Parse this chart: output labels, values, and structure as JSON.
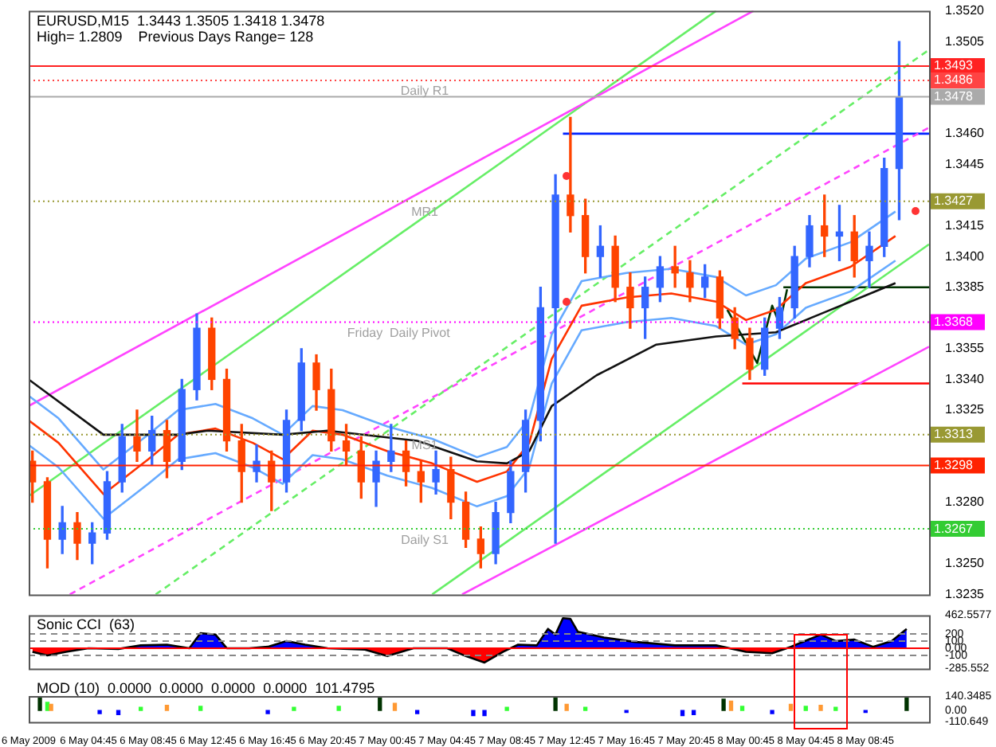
{
  "chart_data": [
    {
      "type": "candlestick",
      "title": "EURUSD,M15  1.3443 1.3505 1.3418 1.3478",
      "subtitle": "High= 1.2809    Previous Days Range= 128",
      "x": [
        "2009-05-06T01:00",
        "2009-05-06T02:00",
        "2009-05-06T03:00",
        "2009-05-06T04:00",
        "2009-05-06T05:00",
        "2009-05-06T06:00",
        "2009-05-06T07:00",
        "2009-05-06T08:00",
        "2009-05-06T09:00",
        "2009-05-06T10:00",
        "2009-05-06T11:00",
        "2009-05-06T12:00",
        "2009-05-06T13:00",
        "2009-05-06T14:00",
        "2009-05-06T15:00",
        "2009-05-06T16:00",
        "2009-05-06T17:00",
        "2009-05-06T18:00",
        "2009-05-06T19:00",
        "2009-05-06T20:00",
        "2009-05-06T21:00",
        "2009-05-06T22:00",
        "2009-05-06T23:00",
        "2009-05-07T00:00",
        "2009-05-07T01:00",
        "2009-05-07T02:00",
        "2009-05-07T03:00",
        "2009-05-07T04:00",
        "2009-05-07T05:00",
        "2009-05-07T06:00",
        "2009-05-07T07:00",
        "2009-05-07T08:00",
        "2009-05-07T09:00",
        "2009-05-07T10:00",
        "2009-05-07T11:00",
        "2009-05-07T12:00",
        "2009-05-07T13:00",
        "2009-05-07T14:00",
        "2009-05-07T15:00",
        "2009-05-07T16:00",
        "2009-05-07T17:00",
        "2009-05-07T18:00",
        "2009-05-07T19:00",
        "2009-05-07T20:00",
        "2009-05-07T21:00",
        "2009-05-07T22:00",
        "2009-05-07T23:00",
        "2009-05-08T00:00",
        "2009-05-08T01:00",
        "2009-05-08T02:00",
        "2009-05-08T03:00",
        "2009-05-08T04:00",
        "2009-05-08T05:00",
        "2009-05-08T06:00",
        "2009-05-08T07:00",
        "2009-05-08T08:00",
        "2009-05-08T09:00",
        "2009-05-08T10:00",
        "2009-05-08T11:00"
      ],
      "ohlc": [
        [
          1.33,
          1.3305,
          1.328,
          1.329
        ],
        [
          1.329,
          1.3292,
          1.3248,
          1.3262
        ],
        [
          1.3262,
          1.3278,
          1.3255,
          1.327
        ],
        [
          1.327,
          1.3275,
          1.3252,
          1.326
        ],
        [
          1.326,
          1.327,
          1.325,
          1.3265
        ],
        [
          1.3265,
          1.3295,
          1.3262,
          1.329
        ],
        [
          1.329,
          1.3318,
          1.3285,
          1.3312
        ],
        [
          1.3312,
          1.3325,
          1.33,
          1.3305
        ],
        [
          1.3305,
          1.3322,
          1.3298,
          1.3315
        ],
        [
          1.3315,
          1.332,
          1.3292,
          1.33
        ],
        [
          1.33,
          1.334,
          1.3296,
          1.3335
        ],
        [
          1.3335,
          1.3372,
          1.333,
          1.3365
        ],
        [
          1.3365,
          1.337,
          1.3335,
          1.334
        ],
        [
          1.334,
          1.3345,
          1.3305,
          1.331
        ],
        [
          1.331,
          1.3318,
          1.328,
          1.3295
        ],
        [
          1.3295,
          1.3308,
          1.329,
          1.33
        ],
        [
          1.33,
          1.3305,
          1.3276,
          1.329
        ],
        [
          1.329,
          1.3325,
          1.3285,
          1.332
        ],
        [
          1.332,
          1.3355,
          1.3315,
          1.3348
        ],
        [
          1.3348,
          1.3352,
          1.3325,
          1.3335
        ],
        [
          1.3335,
          1.3345,
          1.3305,
          1.331
        ],
        [
          1.331,
          1.3318,
          1.3298,
          1.3305
        ],
        [
          1.3305,
          1.3312,
          1.3282,
          1.329
        ],
        [
          1.329,
          1.3305,
          1.3278,
          1.33
        ],
        [
          1.33,
          1.3318,
          1.3295,
          1.3305
        ],
        [
          1.3305,
          1.331,
          1.3288,
          1.3295
        ],
        [
          1.3295,
          1.33,
          1.328,
          1.329
        ],
        [
          1.329,
          1.3305,
          1.3284,
          1.3296
        ],
        [
          1.3296,
          1.3302,
          1.3272,
          1.328
        ],
        [
          1.328,
          1.3285,
          1.3258,
          1.3262
        ],
        [
          1.3262,
          1.3268,
          1.3248,
          1.3255
        ],
        [
          1.3255,
          1.328,
          1.325,
          1.3275
        ],
        [
          1.3275,
          1.33,
          1.327,
          1.3295
        ],
        [
          1.3295,
          1.3325,
          1.3285,
          1.332
        ],
        [
          1.332,
          1.3385,
          1.331,
          1.3375
        ],
        [
          1.3375,
          1.344,
          1.326,
          1.343
        ],
        [
          1.343,
          1.3468,
          1.3412,
          1.342
        ],
        [
          1.342,
          1.3428,
          1.3392,
          1.34
        ],
        [
          1.34,
          1.3415,
          1.339,
          1.3405
        ],
        [
          1.3405,
          1.341,
          1.3378,
          1.3385
        ],
        [
          1.3385,
          1.3392,
          1.3365,
          1.3375
        ],
        [
          1.3375,
          1.339,
          1.336,
          1.3385
        ],
        [
          1.3385,
          1.34,
          1.3378,
          1.3395
        ],
        [
          1.3395,
          1.3405,
          1.3385,
          1.3392
        ],
        [
          1.3392,
          1.3398,
          1.3378,
          1.3385
        ],
        [
          1.3385,
          1.3396,
          1.338,
          1.339
        ],
        [
          1.339,
          1.3393,
          1.3365,
          1.337
        ],
        [
          1.337,
          1.3375,
          1.3355,
          1.336
        ],
        [
          1.336,
          1.3365,
          1.334,
          1.3345
        ],
        [
          1.3345,
          1.337,
          1.3342,
          1.3365
        ],
        [
          1.3365,
          1.338,
          1.336,
          1.3375
        ],
        [
          1.3375,
          1.3405,
          1.337,
          1.34
        ],
        [
          1.34,
          1.342,
          1.3395,
          1.3415
        ],
        [
          1.3415,
          1.343,
          1.34,
          1.341
        ],
        [
          1.341,
          1.3425,
          1.3398,
          1.3412
        ],
        [
          1.3412,
          1.342,
          1.339,
          1.3398
        ],
        [
          1.3398,
          1.3412,
          1.3385,
          1.3405
        ],
        [
          1.3405,
          1.3448,
          1.34,
          1.3443
        ],
        [
          1.3443,
          1.3505,
          1.3418,
          1.3478
        ]
      ],
      "colors": [
        "#ff4400",
        "#ff4400",
        "#3366ff",
        "#ff4400",
        "#3366ff",
        "#3366ff",
        "#3366ff",
        "#ff4400",
        "#3366ff",
        "#ff4400",
        "#3366ff",
        "#3366ff",
        "#ff4400",
        "#ff4400",
        "#ff4400",
        "#3366ff",
        "#ff4400",
        "#3366ff",
        "#3366ff",
        "#ff4400",
        "#ff4400",
        "#ff4400",
        "#ff4400",
        "#3366ff",
        "#3366ff",
        "#ff4400",
        "#ff4400",
        "#3366ff",
        "#ff4400",
        "#ff4400",
        "#ff4400",
        "#3366ff",
        "#3366ff",
        "#3366ff",
        "#3366ff",
        "#3366ff",
        "#ff4400",
        "#ff4400",
        "#3366ff",
        "#ff4400",
        "#ff4400",
        "#3366ff",
        "#3366ff",
        "#ff4400",
        "#ff4400",
        "#3366ff",
        "#ff4400",
        "#ff4400",
        "#ff4400",
        "#3366ff",
        "#3366ff",
        "#3366ff",
        "#3366ff",
        "#ff4400",
        "#3366ff",
        "#ff4400",
        "#3366ff",
        "#3366ff",
        "#3366ff"
      ],
      "series": [
        {
          "type": "line",
          "color": "#111111",
          "x": [
            "2009-05-06T00:45",
            "2009-05-06T05:45",
            "2009-05-06T10:45",
            "2009-05-06T12:45",
            "2009-05-06T17:45",
            "2009-05-06T20:45",
            "2009-05-07T02:45",
            "2009-05-07T06:45",
            "2009-05-07T08:45",
            "2009-05-07T10:15",
            "2009-05-07T11:45",
            "2009-05-07T14:45",
            "2009-05-07T18:45",
            "2009-05-07T22:45",
            "2009-05-08T02:45",
            "2009-05-08T05:45",
            "2009-05-08T08:45",
            "2009-05-08T10:45"
          ],
          "values": [
            1.334,
            1.3313,
            1.3313,
            1.3315,
            1.3313,
            1.3315,
            1.331,
            1.33,
            1.3299,
            1.3305,
            1.3327,
            1.3342,
            1.3357,
            1.3361,
            1.3363,
            1.3372,
            1.3381,
            1.3387
          ]
        },
        {
          "type": "line",
          "color": "#ff3300",
          "x": [
            "2009-05-06T00:45",
            "2009-05-06T02:45",
            "2009-05-06T05:45",
            "2009-05-06T08:45",
            "2009-05-06T10:45",
            "2009-05-06T13:15",
            "2009-05-06T15:45",
            "2009-05-06T17:45",
            "2009-05-06T19:45",
            "2009-05-06T21:45",
            "2009-05-07T00:45",
            "2009-05-07T03:45",
            "2009-05-07T06:45",
            "2009-05-07T08:45",
            "2009-05-07T10:15",
            "2009-05-07T11:45",
            "2009-05-07T13:45",
            "2009-05-07T16:45",
            "2009-05-07T19:45",
            "2009-05-07T22:45",
            "2009-05-08T00:45",
            "2009-05-08T02:45",
            "2009-05-08T04:45",
            "2009-05-08T07:45",
            "2009-05-08T10:45"
          ],
          "values": [
            1.332,
            1.3309,
            1.3284,
            1.3301,
            1.3313,
            1.3316,
            1.3309,
            1.3301,
            1.3315,
            1.3313,
            1.3305,
            1.3299,
            1.329,
            1.3295,
            1.3309,
            1.335,
            1.3376,
            1.338,
            1.3382,
            1.3378,
            1.3369,
            1.3374,
            1.3387,
            1.3395,
            1.341
          ]
        },
        {
          "type": "line",
          "color": "#66aaff",
          "x": [
            "2009-05-06T00:45",
            "2009-05-06T02:45",
            "2009-05-06T05:45",
            "2009-05-06T08:45",
            "2009-05-06T10:45",
            "2009-05-06T13:15",
            "2009-05-06T15:45",
            "2009-05-06T17:45",
            "2009-05-06T19:45",
            "2009-05-06T21:45",
            "2009-05-07T00:45",
            "2009-05-07T03:45",
            "2009-05-07T06:45",
            "2009-05-07T08:45",
            "2009-05-07T10:15",
            "2009-05-07T11:45",
            "2009-05-07T13:45",
            "2009-05-07T16:45",
            "2009-05-07T19:45",
            "2009-05-07T22:45",
            "2009-05-08T00:45",
            "2009-05-08T02:45",
            "2009-05-08T04:45",
            "2009-05-08T07:45",
            "2009-05-08T10:45"
          ],
          "values": [
            1.3332,
            1.3321,
            1.3296,
            1.3313,
            1.3325,
            1.3328,
            1.3321,
            1.3313,
            1.3327,
            1.3325,
            1.3317,
            1.3311,
            1.3302,
            1.3307,
            1.3321,
            1.3362,
            1.3388,
            1.3392,
            1.3394,
            1.339,
            1.3381,
            1.3386,
            1.3399,
            1.3407,
            1.3422
          ]
        },
        {
          "type": "line",
          "color": "#66aaff",
          "x": [
            "2009-05-06T00:45",
            "2009-05-06T02:45",
            "2009-05-06T05:45",
            "2009-05-06T08:45",
            "2009-05-06T10:45",
            "2009-05-06T13:15",
            "2009-05-06T15:45",
            "2009-05-06T17:45",
            "2009-05-06T19:45",
            "2009-05-06T21:45",
            "2009-05-07T00:45",
            "2009-05-07T03:45",
            "2009-05-07T06:45",
            "2009-05-07T08:45",
            "2009-05-07T10:15",
            "2009-05-07T11:45",
            "2009-05-07T13:45",
            "2009-05-07T16:45",
            "2009-05-07T19:45",
            "2009-05-07T22:45",
            "2009-05-08T00:45",
            "2009-05-08T02:45",
            "2009-05-08T04:45",
            "2009-05-08T07:45",
            "2009-05-08T10:45"
          ],
          "values": [
            1.3308,
            1.3297,
            1.3272,
            1.3289,
            1.3301,
            1.3304,
            1.3297,
            1.3289,
            1.3303,
            1.3301,
            1.3293,
            1.3287,
            1.3278,
            1.3283,
            1.3297,
            1.3338,
            1.3364,
            1.3368,
            1.337,
            1.3366,
            1.3357,
            1.3362,
            1.3375,
            1.3383,
            1.3398
          ]
        },
        {
          "type": "line",
          "color": "#ff44ff",
          "x": [
            "2009-05-06T00:45",
            "2009-05-08T01:15"
          ],
          "values": [
            1.3327,
            1.352
          ]
        },
        {
          "type": "line",
          "color": "#66ee66",
          "x": [
            "2009-05-06T00:45",
            "2009-05-07T22:45"
          ],
          "values": [
            1.3283,
            1.352
          ]
        },
        {
          "type": "line",
          "color": "#ff44ff",
          "x": [
            "2009-05-07T05:45",
            "2009-05-08T13:00"
          ],
          "values": [
            1.3235,
            1.3356
          ]
        },
        {
          "type": "line",
          "color": "#66ee66",
          "x": [
            "2009-05-07T03:45",
            "2009-05-08T13:00"
          ],
          "values": [
            1.3235,
            1.3406
          ]
        },
        {
          "type": "line",
          "color": "#66ee66",
          "line_style": "dashed",
          "x": [
            "2009-05-06T09:15",
            "2009-05-08T13:00"
          ],
          "values": [
            1.3235,
            1.3501
          ]
        },
        {
          "type": "line",
          "color": "#ff44ff",
          "line_style": "dashed",
          "x": [
            "2009-05-06T03:30",
            "2009-05-08T13:00"
          ],
          "values": [
            1.3235,
            1.3463
          ]
        },
        {
          "type": "line",
          "color": "#0022ff",
          "x": [
            "2009-05-07T12:30",
            "2009-05-08T13:00"
          ],
          "values": [
            1.346,
            1.346
          ]
        },
        {
          "type": "line",
          "color": "#003300",
          "x": [
            "2009-05-08T03:15",
            "2009-05-08T13:00"
          ],
          "values": [
            1.3385,
            1.3385
          ]
        },
        {
          "type": "line",
          "color": "#ff0000",
          "x": [
            "2009-05-08T00:30",
            "2009-05-08T13:00"
          ],
          "values": [
            1.3338,
            1.3338
          ]
        },
        {
          "type": "line",
          "color": "#003300",
          "x": [
            "2009-05-07T23:30",
            "2009-05-08T01:30",
            "2009-05-08T02:30",
            "2009-05-08T03:00",
            "2009-05-08T03:30"
          ],
          "values": [
            1.3374,
            1.3348,
            1.3376,
            1.3367,
            1.3384
          ]
        }
      ],
      "ref_lines": [
        {
          "axis": "y",
          "value": 1.3493,
          "label": "1.3493",
          "color": "#ff2222"
        },
        {
          "axis": "y",
          "value": 1.3486,
          "label": "1.3486",
          "color": "#ff4444",
          "line_style": "dotted"
        },
        {
          "axis": "y",
          "value": 1.3478,
          "label": "1.3478",
          "color": "#aaaaaa"
        },
        {
          "axis": "y",
          "value": 1.3427,
          "label": "1.3427",
          "color": "#999933",
          "line_style": "dotted"
        },
        {
          "axis": "y",
          "value": 1.3368,
          "label": "1.3368",
          "color": "#ff00ff",
          "line_style": "dotted"
        },
        {
          "axis": "y",
          "value": 1.3313,
          "label": "1.3313",
          "color": "#999933",
          "line_style": "dotted"
        },
        {
          "axis": "y",
          "value": 1.3298,
          "label": "1.3298",
          "color": "#ff2200"
        },
        {
          "axis": "y",
          "value": 1.3267,
          "label": "1.3267",
          "color": "#33cc33",
          "line_style": "dotted"
        }
      ],
      "annotations": [
        {
          "text": "Daily R1",
          "x": "2009-05-07T03:15",
          "y": 1.3486
        },
        {
          "text": "MR1",
          "x": "2009-05-07T03:15",
          "y": 1.3427
        },
        {
          "text": "Friday  Daily Pivot",
          "x": "2009-05-07T01:30",
          "y": 1.3368
        },
        {
          "text": "MS1",
          "x": "2009-05-07T03:15",
          "y": 1.3313
        },
        {
          "text": "Daily S1",
          "x": "2009-05-07T03:15",
          "y": 1.3267
        }
      ],
      "xlim": [
        "2009-05-06T00:45",
        "2009-05-08T13:00"
      ],
      "ylim": [
        1.3235,
        1.352
      ],
      "yticks": [
        1.3235,
        {
          "value": 1.325,
          "label": "1.3250"
        },
        {
          "value": 1.328,
          "label": "1.3280"
        },
        1.3325,
        {
          "value": 1.334,
          "label": "1.3340"
        },
        1.3355,
        1.3385,
        {
          "value": 1.34,
          "label": "1.3400"
        },
        1.3415,
        1.3445,
        {
          "value": 1.346,
          "label": "1.3460"
        },
        1.3505,
        {
          "value": 1.352,
          "label": "1.3520"
        }
      ],
      "tick_labels": "y"
    },
    {
      "type": "area",
      "title": "Sonic CCI  (63)",
      "series": [
        {
          "color": "#0000ff",
          "x": [
            "2009-05-06T01:00",
            "2009-05-06T02:00",
            "2009-05-06T03:15",
            "2009-05-06T04:45",
            "2009-05-06T06:45",
            "2009-05-06T08:15",
            "2009-05-06T10:00",
            "2009-05-06T11:30",
            "2009-05-06T12:15",
            "2009-05-06T13:15",
            "2009-05-06T14:00",
            "2009-05-06T15:30",
            "2009-05-06T16:45",
            "2009-05-06T18:00",
            "2009-05-06T19:15",
            "2009-05-06T20:45",
            "2009-05-06T23:15",
            "2009-05-07T00:45",
            "2009-05-07T02:30",
            "2009-05-07T04:45",
            "2009-05-07T06:00",
            "2009-05-07T07:15",
            "2009-05-07T08:30",
            "2009-05-07T09:30",
            "2009-05-07T10:45",
            "2009-05-07T11:30",
            "2009-05-07T12:00",
            "2009-05-07T12:30",
            "2009-05-07T13:00",
            "2009-05-07T13:30",
            "2009-05-07T15:15",
            "2009-05-07T17:15",
            "2009-05-07T20:00",
            "2009-05-07T22:45",
            "2009-05-08T00:45",
            "2009-05-08T02:30",
            "2009-05-08T03:45",
            "2009-05-08T05:45",
            "2009-05-08T06:45",
            "2009-05-08T08:00",
            "2009-05-08T09:15",
            "2009-05-08T10:30",
            "2009-05-08T11:30"
          ],
          "values": [
            -50,
            -100,
            -50,
            0,
            -10,
            40,
            50,
            0,
            210,
            190,
            0,
            0,
            20,
            100,
            50,
            0,
            -20,
            -110,
            0,
            0,
            -110,
            -200,
            -50,
            50,
            40,
            270,
            190,
            420,
            410,
            230,
            150,
            90,
            40,
            40,
            -50,
            -70,
            20,
            190,
            100,
            120,
            20,
            100,
            270
          ]
        }
      ],
      "ref_lines": [
        {
          "axis": "y",
          "value": 200,
          "color": "#888888",
          "line_style": "dashed"
        },
        {
          "axis": "y",
          "value": 100,
          "color": "#888888",
          "line_style": "dashed"
        },
        {
          "axis": "y",
          "value": 0,
          "color": "#ff0000"
        },
        {
          "axis": "y",
          "value": -100,
          "color": "#888888",
          "line_style": "dashed"
        }
      ],
      "xlim": [
        "2009-05-06T00:45",
        "2009-05-08T13:00"
      ],
      "ylim": [
        -285.552,
        462.5577
      ],
      "yticks": [
        {
          "value": 462.5577,
          "label": "462.5577"
        },
        200,
        100,
        {
          "value": 0,
          "label": "0.00"
        },
        -100,
        {
          "value": -285.552,
          "label": "-285.552"
        }
      ],
      "tick_labels": "y"
    },
    {
      "type": "bar",
      "title": "MOD (10)  0.0000  0.0000  0.0000  0.0000  101.4795",
      "x": [
        "2009-05-06T01:30",
        "2009-05-06T02:00",
        "2009-05-06T02:15",
        "2009-05-06T05:30",
        "2009-05-06T06:45",
        "2009-05-06T08:15",
        "2009-05-06T10:00",
        "2009-05-06T12:15",
        "2009-05-06T16:45",
        "2009-05-06T18:30",
        "2009-05-06T21:30",
        "2009-05-07T00:15",
        "2009-05-07T01:15",
        "2009-05-07T02:45",
        "2009-05-07T06:30",
        "2009-05-07T07:15",
        "2009-05-07T08:45",
        "2009-05-07T12:00",
        "2009-05-07T12:45",
        "2009-05-07T14:00",
        "2009-05-07T16:45",
        "2009-05-07T20:30",
        "2009-05-07T21:15",
        "2009-05-07T23:15",
        "2009-05-07T23:45",
        "2009-05-08T00:30",
        "2009-05-08T02:30",
        "2009-05-08T03:45",
        "2009-05-08T04:45",
        "2009-05-08T05:45",
        "2009-05-08T06:45",
        "2009-05-08T08:45",
        "2009-05-08T11:30"
      ],
      "values": [
        130,
        80,
        60,
        -30,
        -40,
        30,
        50,
        40,
        -30,
        30,
        40,
        130,
        70,
        -30,
        -50,
        -50,
        30,
        120,
        60,
        30,
        -20,
        -50,
        -40,
        110,
        90,
        40,
        -30,
        60,
        40,
        50,
        30,
        -20,
        130
      ],
      "colors": [
        "#003300",
        "#33ff33",
        "#ff9933",
        "#0000ff",
        "#0000ff",
        "#33ff33",
        "#ff9933",
        "#33ff33",
        "#0000ff",
        "#33ff33",
        "#33ff33",
        "#003300",
        "#ff9933",
        "#0000ff",
        "#0000ff",
        "#0000ff",
        "#33ff33",
        "#003300",
        "#ff9933",
        "#33ff33",
        "#0000ff",
        "#0000ff",
        "#0000ff",
        "#003300",
        "#ff9933",
        "#33ff33",
        "#0000ff",
        "#ff9933",
        "#33ff33",
        "#ff9933",
        "#33ff33",
        "#0000ff",
        "#003300"
      ],
      "xlim": [
        "2009-05-06T00:45",
        "2009-05-08T13:00"
      ],
      "ylim": [
        -110.649,
        140.3485
      ],
      "yticks": [
        {
          "value": 140.3485,
          "label": "140.3485"
        },
        {
          "value": 0,
          "label": "0.00"
        },
        {
          "value": -110.649,
          "label": "-110.649"
        }
      ],
      "xticks": [
        {
          "value": "2009-05-06T00:45",
          "label": "6 May 2009"
        },
        {
          "value": "2009-05-06T04:45",
          "label": "6 May 04:45"
        },
        {
          "value": "2009-05-06T08:45",
          "label": "6 May 08:45"
        },
        {
          "value": "2009-05-06T12:45",
          "label": "6 May 12:45"
        },
        {
          "value": "2009-05-06T16:45",
          "label": "6 May 16:45"
        },
        {
          "value": "2009-05-06T20:45",
          "label": "6 May 20:45"
        },
        {
          "value": "2009-05-07T00:45",
          "label": "7 May 00:45"
        },
        {
          "value": "2009-05-07T04:45",
          "label": "7 May 04:45"
        },
        {
          "value": "2009-05-07T08:45",
          "label": "7 May 08:45"
        },
        {
          "value": "2009-05-07T12:45",
          "label": "7 May 12:45"
        },
        {
          "value": "2009-05-07T16:45",
          "label": "7 May 16:45"
        },
        {
          "value": "2009-05-07T20:45",
          "label": "7 May 20:45"
        },
        {
          "value": "2009-05-08T00:45",
          "label": "8 May 00:45"
        },
        {
          "value": "2009-05-08T04:45",
          "label": "8 May 04:45"
        },
        {
          "value": "2009-05-08T08:45",
          "label": "8 May 08:45"
        }
      ]
    }
  ]
}
